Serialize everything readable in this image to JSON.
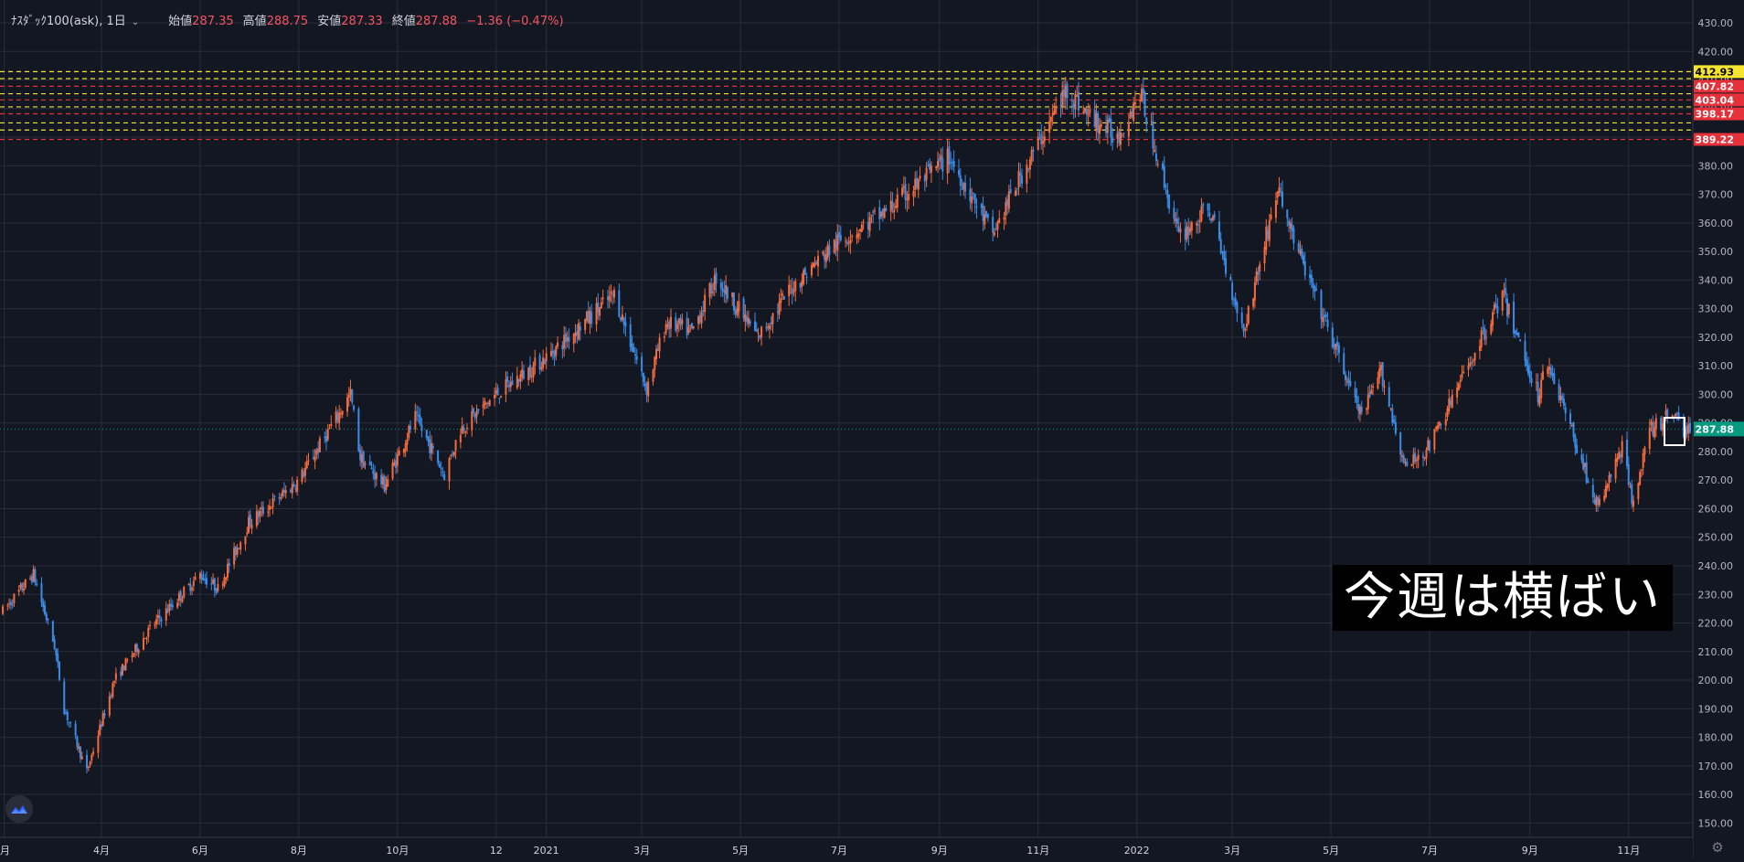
{
  "legend": {
    "symbol": "ﾅｽﾀﾞｯｸ100(ask), 1日",
    "chevron": "⌄",
    "open_label": "始値",
    "open": "287.35",
    "high_label": "高値",
    "high": "288.75",
    "low_label": "安値",
    "low": "287.33",
    "close_label": "終値",
    "close": "287.88",
    "change": "−1.36 (−0.47%)"
  },
  "caption": "今週は横ばい",
  "icons": {
    "logo": "tradingview-logo-icon",
    "settings": "gear-icon"
  },
  "colors": {
    "background": "#131722",
    "grid": "#2a2e39",
    "up": "#f56b3d",
    "down": "#3c8ce7",
    "yellow_level": "#f5e430",
    "red_level": "#e5323a",
    "last_price": "#089981"
  },
  "chart_data": {
    "type": "candlestick",
    "ylim": [
      145,
      438
    ],
    "y_ticks": [
      "150.00",
      "160.00",
      "170.00",
      "180.00",
      "190.00",
      "200.00",
      "210.00",
      "220.00",
      "230.00",
      "240.00",
      "250.00",
      "260.00",
      "270.00",
      "280.00",
      "290.00",
      "300.00",
      "310.00",
      "320.00",
      "330.00",
      "340.00",
      "350.00",
      "360.00",
      "370.00",
      "380.00",
      "390.00",
      "400.00",
      "410.00",
      "420.00",
      "430.00"
    ],
    "x_ticks": [
      "月",
      "4月",
      "6月",
      "8月",
      "10月",
      "12",
      "2021",
      "3月",
      "5月",
      "7月",
      "9月",
      "11月",
      "2022",
      "3月",
      "5月",
      "7月",
      "9月",
      "11月"
    ],
    "x_range": [
      "2020-01-31",
      "2022-12-09"
    ],
    "x_tick_dates": [
      "2020-02-01",
      "2020-04-01",
      "2020-06-01",
      "2020-08-01",
      "2020-10-01",
      "2020-12-01",
      "2021-01-01",
      "2021-03-01",
      "2021-05-01",
      "2021-07-01",
      "2021-09-01",
      "2021-11-01",
      "2022-01-01",
      "2022-03-01",
      "2022-05-01",
      "2022-07-01",
      "2022-09-01",
      "2022-11-01"
    ],
    "price_path": [
      [
        "2020-01-31",
        224
      ],
      [
        "2020-02-19",
        237
      ],
      [
        "2020-03-03",
        212
      ],
      [
        "2020-03-09",
        190
      ],
      [
        "2020-03-23",
        168
      ],
      [
        "2020-04-01",
        185
      ],
      [
        "2020-04-09",
        200
      ],
      [
        "2020-05-01",
        218
      ],
      [
        "2020-06-01",
        237
      ],
      [
        "2020-06-12",
        232
      ],
      [
        "2020-07-01",
        255
      ],
      [
        "2020-07-20",
        264
      ],
      [
        "2020-08-01",
        270
      ],
      [
        "2020-09-02",
        300
      ],
      [
        "2020-09-08",
        278
      ],
      [
        "2020-09-23",
        268
      ],
      [
        "2020-10-12",
        292
      ],
      [
        "2020-10-30",
        272
      ],
      [
        "2020-11-09",
        288
      ],
      [
        "2020-12-01",
        300
      ],
      [
        "2021-01-01",
        313
      ],
      [
        "2021-02-12",
        335
      ],
      [
        "2021-03-04",
        302
      ],
      [
        "2021-03-16",
        325
      ],
      [
        "2021-04-01",
        322
      ],
      [
        "2021-04-16",
        341
      ],
      [
        "2021-05-12",
        320
      ],
      [
        "2021-06-01",
        337
      ],
      [
        "2021-06-29",
        353
      ],
      [
        "2021-07-30",
        364
      ],
      [
        "2021-08-15",
        372
      ],
      [
        "2021-09-07",
        383
      ],
      [
        "2021-10-04",
        356
      ],
      [
        "2021-10-20",
        375
      ],
      [
        "2021-11-19",
        407
      ],
      [
        "2021-12-01",
        398
      ],
      [
        "2021-12-20",
        390
      ],
      [
        "2022-01-03",
        406
      ],
      [
        "2022-01-27",
        355
      ],
      [
        "2022-02-15",
        365
      ],
      [
        "2022-03-08",
        322
      ],
      [
        "2022-03-29",
        372
      ],
      [
        "2022-04-12",
        348
      ],
      [
        "2022-05-20",
        292
      ],
      [
        "2022-06-01",
        308
      ],
      [
        "2022-06-16",
        274
      ],
      [
        "2022-07-01",
        282
      ],
      [
        "2022-08-15",
        335
      ],
      [
        "2022-09-06",
        300
      ],
      [
        "2022-09-12",
        312
      ],
      [
        "2022-10-13",
        260
      ],
      [
        "2022-10-28",
        282
      ],
      [
        "2022-11-03",
        263
      ],
      [
        "2022-11-15",
        288
      ],
      [
        "2022-11-30",
        294
      ],
      [
        "2022-12-06",
        286
      ],
      [
        "2022-12-09",
        287.88
      ]
    ],
    "price_levels": [
      {
        "value": 412.93,
        "color": "yellow",
        "label": "412.93"
      },
      {
        "value": 410.5,
        "color": "yellow",
        "label": ""
      },
      {
        "value": 407.82,
        "color": "red",
        "label": "407.82"
      },
      {
        "value": 405.2,
        "color": "yellow",
        "label": ""
      },
      {
        "value": 403.04,
        "color": "red",
        "label": "403.04"
      },
      {
        "value": 400.6,
        "color": "yellow",
        "label": ""
      },
      {
        "value": 398.17,
        "color": "red",
        "label": "398.17"
      },
      {
        "value": 395.0,
        "color": "yellow",
        "label": ""
      },
      {
        "value": 392.5,
        "color": "yellow",
        "label": ""
      },
      {
        "value": 389.22,
        "color": "red",
        "label": "389.22"
      }
    ],
    "last_price": {
      "value": 287.88,
      "label": "287.88"
    }
  }
}
